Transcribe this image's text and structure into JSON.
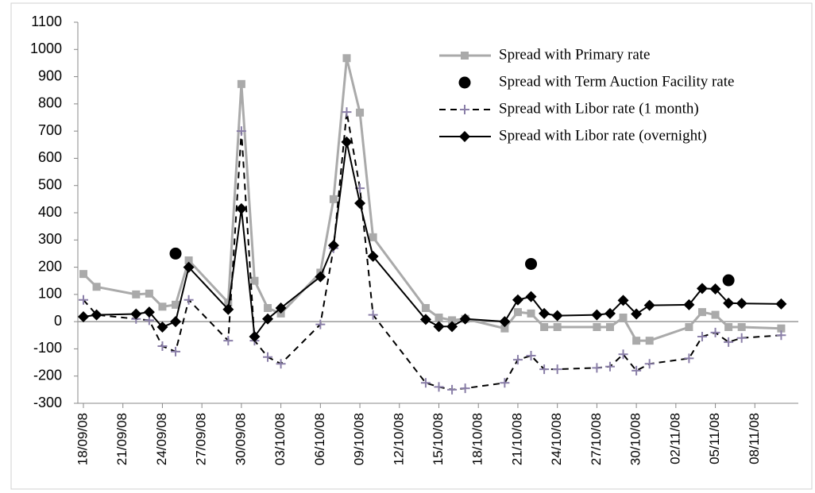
{
  "chart_data": {
    "type": "line",
    "x": [
      "18/09/08",
      "19/09/08",
      "22/09/08",
      "23/09/08",
      "24/09/08",
      "25/09/08",
      "26/09/08",
      "29/09/08",
      "30/09/08",
      "01/10/08",
      "02/10/08",
      "03/10/08",
      "06/10/08",
      "07/10/08",
      "08/10/08",
      "09/10/08",
      "10/10/08",
      "14/10/08",
      "15/10/08",
      "16/10/08",
      "17/10/08",
      "20/10/08",
      "21/10/08",
      "22/10/08",
      "23/10/08",
      "24/10/08",
      "27/10/08",
      "28/10/08",
      "29/10/08",
      "30/10/08",
      "31/10/08",
      "03/11/08",
      "04/11/08",
      "05/11/08",
      "06/11/08",
      "07/11/08",
      "10/11/08"
    ],
    "series": [
      {
        "name": "Spread with Primary rate",
        "color": "#aaaaaa",
        "marker": "square",
        "line": "solid",
        "values": [
          175,
          128,
          100,
          103,
          55,
          62,
          225,
          70,
          873,
          150,
          50,
          30,
          180,
          450,
          968,
          768,
          310,
          50,
          15,
          5,
          10,
          -25,
          35,
          30,
          -20,
          -20,
          -20,
          -20,
          15,
          -70,
          -70,
          -20,
          35,
          25,
          -20,
          -20,
          -25
        ]
      },
      {
        "name": "Spread with Term Auction Facility rate",
        "color": "#000000",
        "marker": "circle",
        "line": "none",
        "values": [
          null,
          null,
          null,
          null,
          null,
          250,
          null,
          null,
          null,
          null,
          null,
          null,
          null,
          null,
          null,
          null,
          null,
          null,
          null,
          null,
          null,
          null,
          null,
          212,
          null,
          null,
          null,
          null,
          null,
          null,
          null,
          null,
          null,
          null,
          152,
          null,
          null
        ]
      },
      {
        "name": "Spread with Libor rate (1 month)",
        "color": "#000000",
        "marker_color": "#8a7fa8",
        "marker": "plus",
        "line": "dashed",
        "values": [
          80,
          25,
          10,
          5,
          -90,
          -110,
          80,
          -70,
          700,
          -70,
          -130,
          -155,
          -10,
          270,
          770,
          490,
          25,
          -225,
          -240,
          -250,
          -245,
          -225,
          -140,
          -125,
          -175,
          -175,
          -170,
          -165,
          -120,
          -180,
          -155,
          -135,
          -55,
          -40,
          -75,
          -60,
          -50
        ]
      },
      {
        "name": "Spread with Libor rate (overnight)",
        "color": "#000000",
        "marker": "diamond",
        "line": "solid",
        "values": [
          18,
          25,
          28,
          35,
          -20,
          0,
          200,
          45,
          415,
          -55,
          10,
          50,
          165,
          280,
          660,
          435,
          240,
          8,
          -18,
          -18,
          10,
          0,
          80,
          92,
          30,
          22,
          25,
          30,
          78,
          28,
          60,
          62,
          122,
          120,
          68,
          67,
          65
        ]
      }
    ],
    "xlim": [
      "18/09/08",
      "11/11/08"
    ],
    "xticks": [
      "18/09/08",
      "21/09/08",
      "24/09/08",
      "27/09/08",
      "30/09/08",
      "03/10/08",
      "06/10/08",
      "09/10/08",
      "12/10/08",
      "15/10/08",
      "18/10/08",
      "21/10/08",
      "24/10/08",
      "27/10/08",
      "30/10/08",
      "02/11/08",
      "05/11/08",
      "08/11/08"
    ],
    "ylim": [
      -300,
      1100
    ],
    "yticks": [
      -300,
      -200,
      -100,
      0,
      100,
      200,
      300,
      400,
      500,
      600,
      700,
      800,
      900,
      1000,
      1100
    ],
    "grid": false,
    "legend": "upper right"
  }
}
